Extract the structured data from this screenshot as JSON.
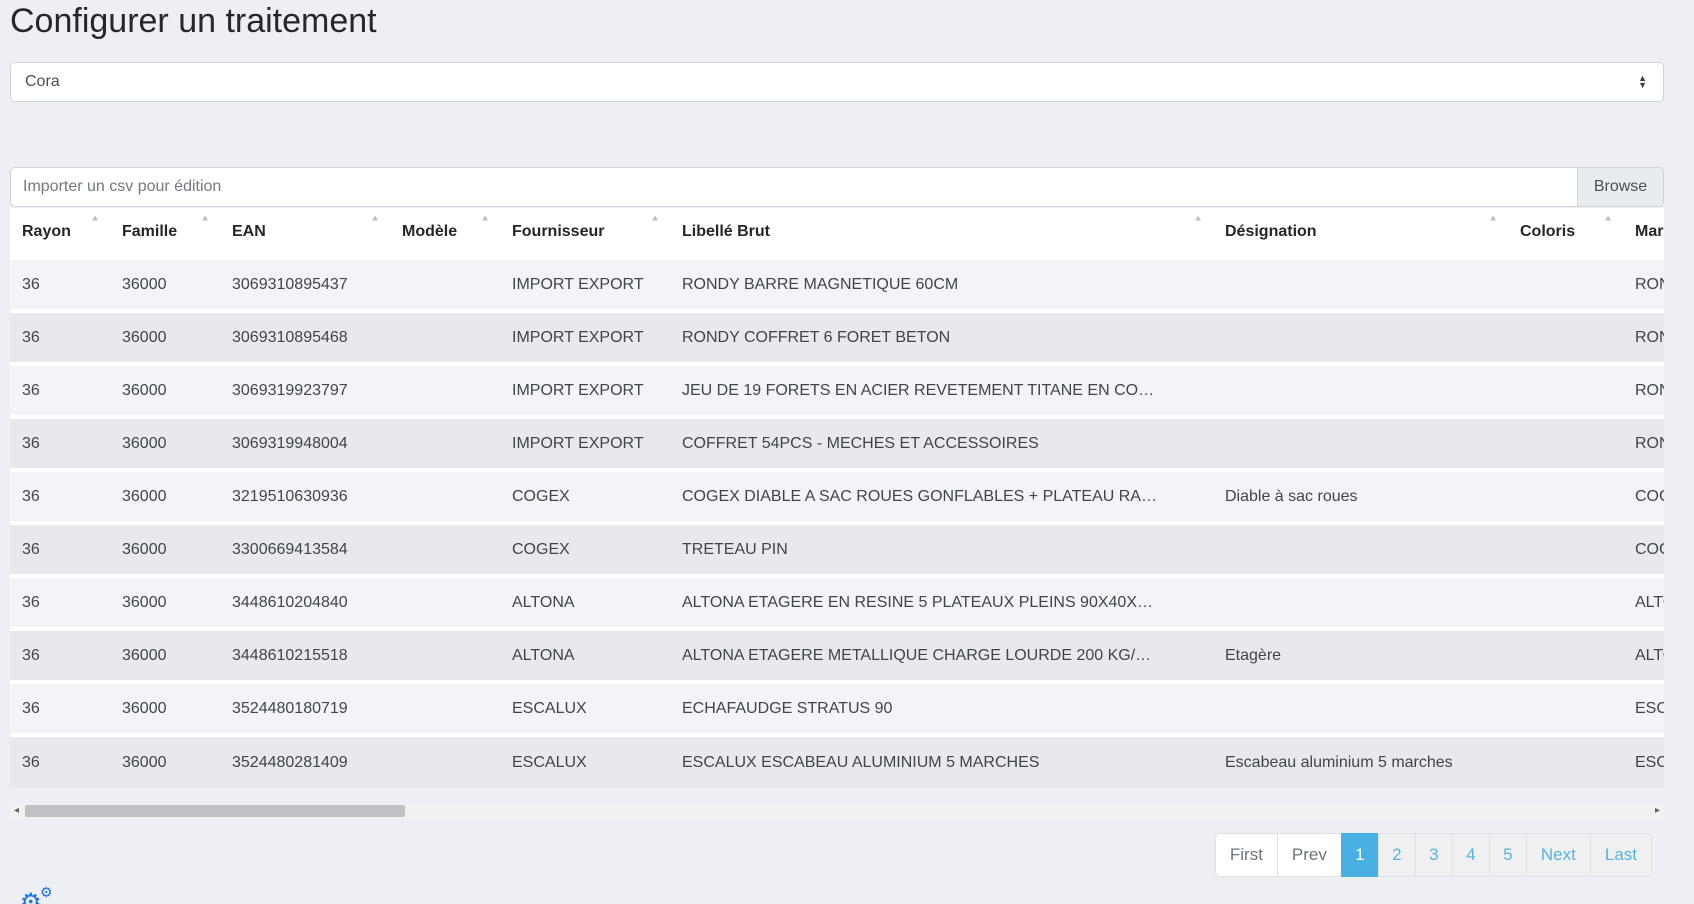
{
  "title": "Configurer un traitement",
  "select": {
    "value": "Cora"
  },
  "file_input": {
    "placeholder": "Importer un csv pour édition",
    "browse_label": "Browse"
  },
  "table": {
    "columns": [
      "Rayon",
      "Famille",
      "EAN",
      "Modèle",
      "Fournisseur",
      "Libellé Brut",
      "Désignation",
      "Coloris",
      "Marque"
    ],
    "rows": [
      [
        "36",
        "36000",
        "3069310895437",
        "",
        "IMPORT EXPORT",
        "RONDY BARRE MAGNETIQUE 60CM",
        "",
        "",
        "RONDY"
      ],
      [
        "36",
        "36000",
        "3069310895468",
        "",
        "IMPORT EXPORT",
        "RONDY COFFRET 6 FORET BETON",
        "",
        "",
        "RONDY"
      ],
      [
        "36",
        "36000",
        "3069319923797",
        "",
        "IMPORT EXPORT",
        "JEU DE 19 FORETS EN ACIER REVETEMENT TITANE EN CO…",
        "",
        "",
        "RONDY"
      ],
      [
        "36",
        "36000",
        "3069319948004",
        "",
        "IMPORT EXPORT",
        "COFFRET 54PCS - MECHES ET ACCESSOIRES",
        "",
        "",
        "RONDY"
      ],
      [
        "36",
        "36000",
        "3219510630936",
        "",
        "COGEX",
        "COGEX DIABLE A SAC ROUES GONFLABLES + PLATEAU RA…",
        "Diable à sac roues",
        "",
        "COGEX"
      ],
      [
        "36",
        "36000",
        "3300669413584",
        "",
        "COGEX",
        "TRETEAU PIN",
        "",
        "",
        "COGEX"
      ],
      [
        "36",
        "36000",
        "3448610204840",
        "",
        "ALTONA",
        "ALTONA ETAGERE EN RESINE 5 PLATEAUX PLEINS 90X40X…",
        "",
        "",
        "ALTONA"
      ],
      [
        "36",
        "36000",
        "3448610215518",
        "",
        "ALTONA",
        "ALTONA ETAGERE METALLIQUE CHARGE LOURDE 200 KG/…",
        "Etagère",
        "",
        "ALTONA"
      ],
      [
        "36",
        "36000",
        "3524480180719",
        "",
        "ESCALUX",
        "ECHAFAUDGE STRATUS 90",
        "",
        "",
        "ESCALUX"
      ],
      [
        "36",
        "36000",
        "3524480281409",
        "",
        "ESCALUX",
        "ESCALUX ESCABEAU ALUMINIUM 5 MARCHES",
        "Escabeau aluminium 5 marches",
        "",
        "ESCALUX"
      ]
    ]
  },
  "pagination": {
    "items": [
      {
        "label": "First",
        "state": "disabled"
      },
      {
        "label": "Prev",
        "state": "disabled"
      },
      {
        "label": "1",
        "state": "active"
      },
      {
        "label": "2",
        "state": "normal"
      },
      {
        "label": "3",
        "state": "normal"
      },
      {
        "label": "4",
        "state": "normal"
      },
      {
        "label": "5",
        "state": "normal"
      },
      {
        "label": "Next",
        "state": "normal"
      },
      {
        "label": "Last",
        "state": "normal"
      }
    ]
  },
  "icons": {
    "sort_asc": "▲",
    "select_caret_up": "▲",
    "select_caret_down": "▼",
    "scroll_left": "◂",
    "scroll_right": "▸",
    "gear": "⚙"
  },
  "colors": {
    "page_background": "#edeff4",
    "active_page_blue": "#49b0e3",
    "page_link_blue": "#57b3df",
    "gear_icon_blue": "#1672e6"
  }
}
